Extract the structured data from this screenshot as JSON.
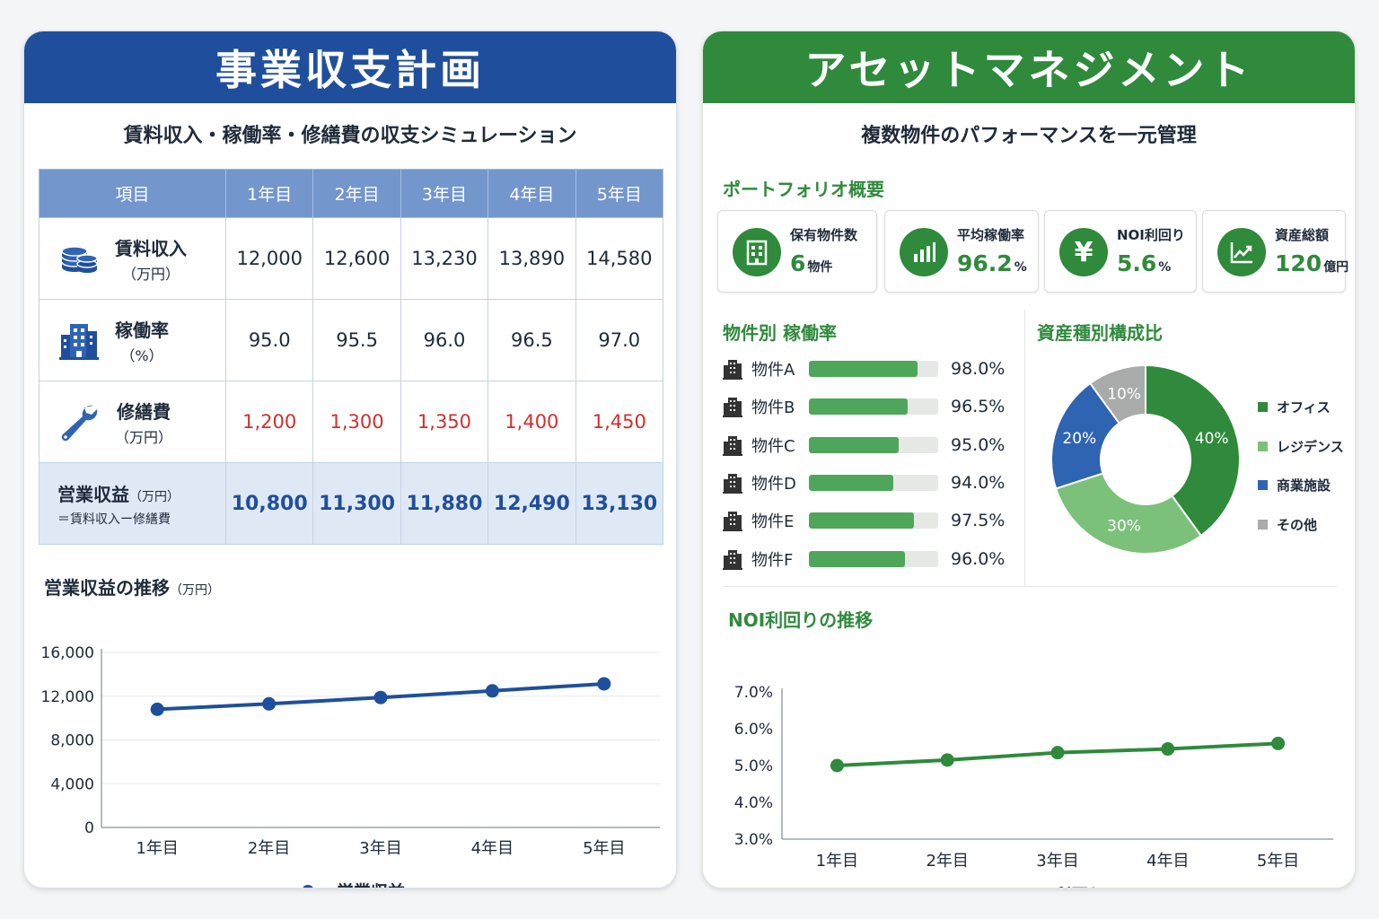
{
  "business_plan": {
    "title": "事業収支計画",
    "subtitle": "賃料収入・稼働率・修繕費の収支シミュレーション",
    "table": {
      "headers": [
        "項目",
        "1年目",
        "2年目",
        "3年目",
        "4年目",
        "5年目"
      ],
      "rows": [
        {
          "label": "賃料収入",
          "unit": "（万円）",
          "values": [
            "12,000",
            "12,600",
            "13,230",
            "13,890",
            "14,580"
          ]
        },
        {
          "label": "稼働率",
          "unit": "（%）",
          "values": [
            "95.0",
            "95.5",
            "96.0",
            "96.5",
            "97.0"
          ]
        },
        {
          "label": "修繕費",
          "unit": "（万円）",
          "values": [
            "1,200",
            "1,300",
            "1,350",
            "1,400",
            "1,450"
          ]
        }
      ],
      "total": {
        "label": "営業収益",
        "unit": "（万円）",
        "formula": "＝賃料収入ー修繕費",
        "values": [
          "10,800",
          "11,300",
          "11,880",
          "12,490",
          "13,130"
        ]
      }
    },
    "chart_title": "営業収益の推移",
    "chart_title_unit": "（万円）"
  },
  "asset_management": {
    "title": "アセットマネジメント",
    "subtitle": "複数物件のパフォーマンスを一元管理",
    "portfolio_title": "ポートフォリオ概要",
    "kpis": [
      {
        "label": "保有物件数",
        "value": "6",
        "unit": "物件",
        "icon": "building-icon"
      },
      {
        "label": "平均稼働率",
        "value": "96.2",
        "unit": "%",
        "icon": "bar-chart-icon"
      },
      {
        "label": "NOI利回り",
        "value": "5.6",
        "unit": "%",
        "icon": "yen-icon",
        "glyph": "¥"
      },
      {
        "label": "資産総額",
        "value": "120",
        "unit": "億円",
        "icon": "trend-icon"
      }
    ],
    "occupancy_title": "物件別 稼働率",
    "occupancy": [
      {
        "name": "物件A",
        "value": 98.0,
        "label": "98.0%"
      },
      {
        "name": "物件B",
        "value": 96.5,
        "label": "96.5%"
      },
      {
        "name": "物件C",
        "value": 95.0,
        "label": "95.0%"
      },
      {
        "name": "物件D",
        "value": 94.0,
        "label": "94.0%"
      },
      {
        "name": "物件E",
        "value": 97.5,
        "label": "97.5%"
      },
      {
        "name": "物件F",
        "value": 96.0,
        "label": "96.0%"
      }
    ],
    "composition_title": "資産種別構成比",
    "noi_title": "NOI利回りの推移"
  },
  "colors": {
    "blue": "#1f4f9c",
    "green": "#2f8a3c",
    "light_green": "#7cc17a",
    "mid_blue": "#2f64b3",
    "gray": "#a9aaaa",
    "red": "#d02f2f"
  },
  "chart_data": [
    {
      "type": "line",
      "title": "営業収益の推移",
      "x": [
        "1年目",
        "2年目",
        "3年目",
        "4年目",
        "5年目"
      ],
      "series": [
        {
          "name": "営業収益",
          "values": [
            10800,
            11300,
            11880,
            12490,
            13130
          ]
        }
      ],
      "ylim": [
        0,
        16000
      ],
      "yticks": [
        "0",
        "4,000",
        "8,000",
        "12,000",
        "16,000"
      ],
      "ytick_values": [
        0,
        4000,
        8000,
        12000,
        16000
      ],
      "grid": true,
      "legend": "bottom"
    },
    {
      "type": "bar",
      "title": "物件別 稼働率",
      "categories": [
        "物件A",
        "物件B",
        "物件C",
        "物件D",
        "物件E",
        "物件F"
      ],
      "values": [
        98.0,
        96.5,
        95.0,
        94.0,
        97.5,
        96.0
      ]
    },
    {
      "type": "pie",
      "title": "資産種別構成比",
      "categories": [
        "オフィス",
        "レジデンス",
        "商業施設",
        "その他"
      ],
      "values": [
        40,
        30,
        20,
        10
      ],
      "labels": [
        "40%",
        "30%",
        "20%",
        "10%"
      ],
      "legend": "right"
    },
    {
      "type": "line",
      "title": "NOI利回りの推移",
      "x": [
        "1年目",
        "2年目",
        "3年目",
        "4年目",
        "5年目"
      ],
      "series": [
        {
          "name": "NOI利回り",
          "values": [
            5.0,
            5.15,
            5.35,
            5.45,
            5.6
          ]
        }
      ],
      "ylim": [
        3.0,
        7.0
      ],
      "yticks": [
        "3.0%",
        "4.0%",
        "5.0%",
        "6.0%",
        "7.0%"
      ],
      "ytick_values": [
        3.0,
        4.0,
        5.0,
        6.0,
        7.0
      ],
      "grid": false,
      "legend": "bottom"
    }
  ]
}
